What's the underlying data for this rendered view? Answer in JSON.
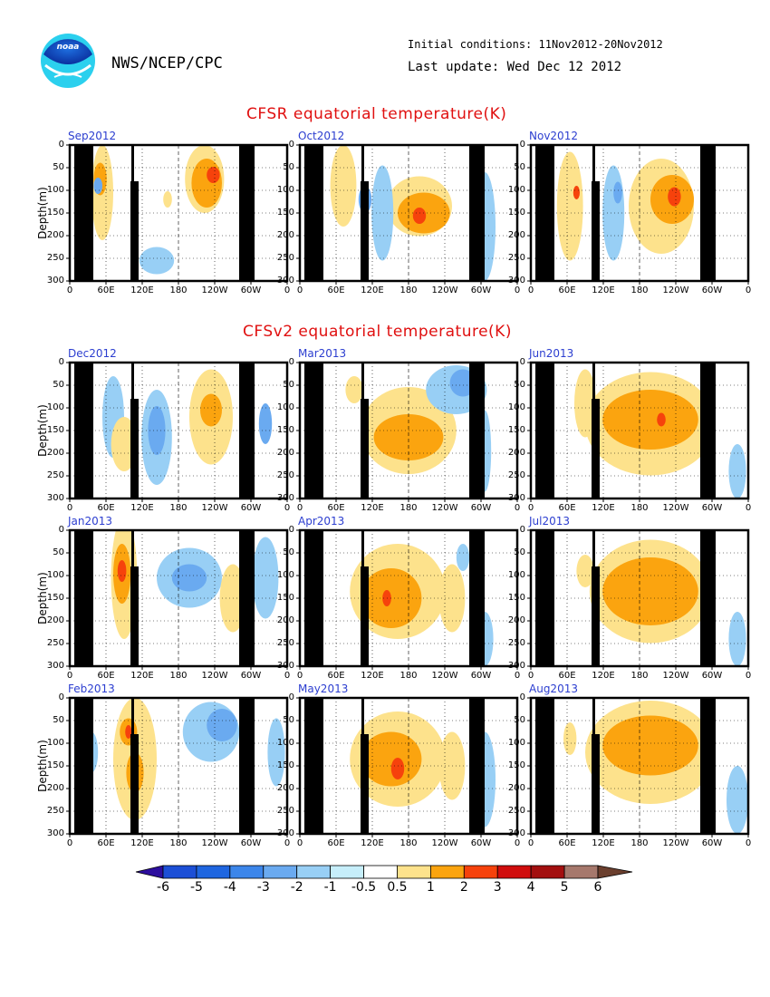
{
  "header": {
    "org": "NWS/NCEP/CPC",
    "initial_conditions": "Initial conditions: 11Nov2012-20Nov2012",
    "last_update": "Last update: Wed Dec 12 2012",
    "logo_text": "noaa"
  },
  "sections": {
    "cfsr_title": "CFSR equatorial temperature(K)",
    "cfsv2_title": "CFSv2 equatorial temperature(K)"
  },
  "colors": {
    "-6": "#2d0e9e",
    "-5": "#1c4fd6",
    "-4": "#1f66e0",
    "-3": "#3c86ea",
    "-2": "#6aaaf0",
    "-1": "#98cff5",
    "-0.5": "#c6eefa",
    "0.5": "#ffffff",
    "1": "#fde28c",
    "2": "#fba40f",
    "3": "#f6420c",
    "4": "#d00d0d",
    "5": "#a30f0f",
    "6": "#a6786c",
    "7": "#6b3f2e",
    "land": "#000000"
  },
  "chart_data": [
    {
      "type": "heatmap",
      "title": "Sep2012",
      "group": "CFSR",
      "ylabel": "Depth(m)",
      "ylim": [
        0,
        300
      ],
      "xticks": [
        "0",
        "60E",
        "120E",
        "180",
        "120W",
        "60W",
        "0"
      ],
      "yticks": [
        "0",
        "50",
        "100",
        "150",
        "200",
        "250",
        "300"
      ]
    },
    {
      "type": "heatmap",
      "title": "Oct2012",
      "group": "CFSR",
      "ylim": [
        0,
        300
      ],
      "xticks": [
        "0",
        "60E",
        "120E",
        "180",
        "120W",
        "60W",
        "0"
      ],
      "yticks": [
        "0",
        "50",
        "100",
        "150",
        "200",
        "250",
        "300"
      ]
    },
    {
      "type": "heatmap",
      "title": "Nov2012",
      "group": "CFSR",
      "ylim": [
        0,
        300
      ],
      "xticks": [
        "0",
        "60E",
        "120E",
        "180",
        "120W",
        "60W",
        "0"
      ],
      "yticks": [
        "0",
        "50",
        "100",
        "150",
        "200",
        "250",
        "300"
      ]
    },
    {
      "type": "heatmap",
      "title": "Dec2012",
      "group": "CFSv2",
      "ylabel": "Depth(m)",
      "ylim": [
        0,
        300
      ],
      "xticks": [
        "0",
        "60E",
        "120E",
        "180",
        "120W",
        "60W",
        "0"
      ],
      "yticks": [
        "0",
        "50",
        "100",
        "150",
        "200",
        "250",
        "300"
      ]
    },
    {
      "type": "heatmap",
      "title": "Mar2013",
      "group": "CFSv2",
      "ylim": [
        0,
        300
      ],
      "xticks": [
        "0",
        "60E",
        "120E",
        "180",
        "120W",
        "60W",
        "0"
      ],
      "yticks": [
        "0",
        "50",
        "100",
        "150",
        "200",
        "250",
        "300"
      ]
    },
    {
      "type": "heatmap",
      "title": "Jun2013",
      "group": "CFSv2",
      "ylim": [
        0,
        300
      ],
      "xticks": [
        "0",
        "60E",
        "120E",
        "180",
        "120W",
        "60W",
        "0"
      ],
      "yticks": [
        "0",
        "50",
        "100",
        "150",
        "200",
        "250",
        "300"
      ]
    },
    {
      "type": "heatmap",
      "title": "Jan2013",
      "group": "CFSv2",
      "ylabel": "Depth(m)",
      "ylim": [
        0,
        300
      ],
      "xticks": [
        "0",
        "60E",
        "120E",
        "180",
        "120W",
        "60W",
        "0"
      ],
      "yticks": [
        "0",
        "50",
        "100",
        "150",
        "200",
        "250",
        "300"
      ]
    },
    {
      "type": "heatmap",
      "title": "Apr2013",
      "group": "CFSv2",
      "ylim": [
        0,
        300
      ],
      "xticks": [
        "0",
        "60E",
        "120E",
        "180",
        "120W",
        "60W",
        "0"
      ],
      "yticks": [
        "0",
        "50",
        "100",
        "150",
        "200",
        "250",
        "300"
      ]
    },
    {
      "type": "heatmap",
      "title": "Jul2013",
      "group": "CFSv2",
      "ylim": [
        0,
        300
      ],
      "xticks": [
        "0",
        "60E",
        "120E",
        "180",
        "120W",
        "60W",
        "0"
      ],
      "yticks": [
        "0",
        "50",
        "100",
        "150",
        "200",
        "250",
        "300"
      ]
    },
    {
      "type": "heatmap",
      "title": "Feb2013",
      "group": "CFSv2",
      "ylabel": "Depth(m)",
      "ylim": [
        0,
        300
      ],
      "xticks": [
        "0",
        "60E",
        "120E",
        "180",
        "120W",
        "60W",
        "0"
      ],
      "yticks": [
        "0",
        "50",
        "100",
        "150",
        "200",
        "250",
        "300"
      ]
    },
    {
      "type": "heatmap",
      "title": "May2013",
      "group": "CFSv2",
      "ylim": [
        0,
        300
      ],
      "xticks": [
        "0",
        "60E",
        "120E",
        "180",
        "120W",
        "60W",
        "0"
      ],
      "yticks": [
        "0",
        "50",
        "100",
        "150",
        "200",
        "250",
        "300"
      ]
    },
    {
      "type": "heatmap",
      "title": "Aug2013",
      "group": "CFSv2",
      "ylim": [
        0,
        300
      ],
      "xticks": [
        "0",
        "60E",
        "120E",
        "180",
        "120W",
        "60W",
        "0"
      ],
      "yticks": [
        "0",
        "50",
        "100",
        "150",
        "200",
        "250",
        "300"
      ]
    }
  ],
  "colorbar": {
    "labels": [
      "-6",
      "-5",
      "-4",
      "-3",
      "-2",
      "-1",
      "-0.5",
      "0.5",
      "1",
      "2",
      "3",
      "4",
      "5",
      "6"
    ],
    "colors": [
      "#2d0e9e",
      "#1c4fd6",
      "#1f66e0",
      "#3c86ea",
      "#6aaaf0",
      "#98cff5",
      "#c6eefa",
      "#ffffff",
      "#fde28c",
      "#fba40f",
      "#f6420c",
      "#d00d0d",
      "#a30f0f",
      "#a6786c",
      "#6b3f2e"
    ]
  }
}
